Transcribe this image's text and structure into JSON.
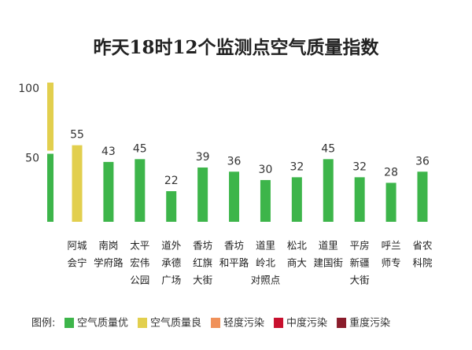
{
  "chart_data": {
    "type": "bar",
    "title": "昨天18时12个监测点空气质量指数",
    "categories": [
      [
        "阿城",
        "会宁"
      ],
      [
        "南岗",
        "学府路"
      ],
      [
        "太平",
        "宏伟",
        "公园"
      ],
      [
        "道外",
        "承德",
        "广场"
      ],
      [
        "香坊",
        "红旗",
        "大街"
      ],
      [
        "香坊",
        "和平路"
      ],
      [
        "道里",
        "岭北",
        "对照点"
      ],
      [
        "松北",
        "商大"
      ],
      [
        "道里",
        "建国街"
      ],
      [
        "平房",
        "新疆",
        "大街"
      ],
      [
        "呼兰",
        "师专"
      ],
      [
        "省农",
        "科院"
      ]
    ],
    "values": [
      55,
      43,
      45,
      22,
      39,
      36,
      30,
      32,
      45,
      32,
      28,
      36
    ],
    "colors": [
      "#e2cf4e",
      "#3db54a",
      "#3db54a",
      "#3db54a",
      "#3db54a",
      "#3db54a",
      "#3db54a",
      "#3db54a",
      "#3db54a",
      "#3db54a",
      "#3db54a",
      "#3db54a"
    ],
    "ylim": [
      0,
      100
    ],
    "yticks": [
      50,
      100
    ],
    "scale_colors": [
      "#3db54a",
      "#e2cf4e"
    ],
    "legend_title": "图例:",
    "legend": [
      {
        "name": "空气质量优",
        "color": "#3db54a"
      },
      {
        "name": "空气质量良",
        "color": "#e2cf4e"
      },
      {
        "name": "轻度污染",
        "color": "#f0915a"
      },
      {
        "name": "中度污染",
        "color": "#c8102e"
      },
      {
        "name": "重度污染",
        "color": "#8a1c2b"
      }
    ]
  }
}
